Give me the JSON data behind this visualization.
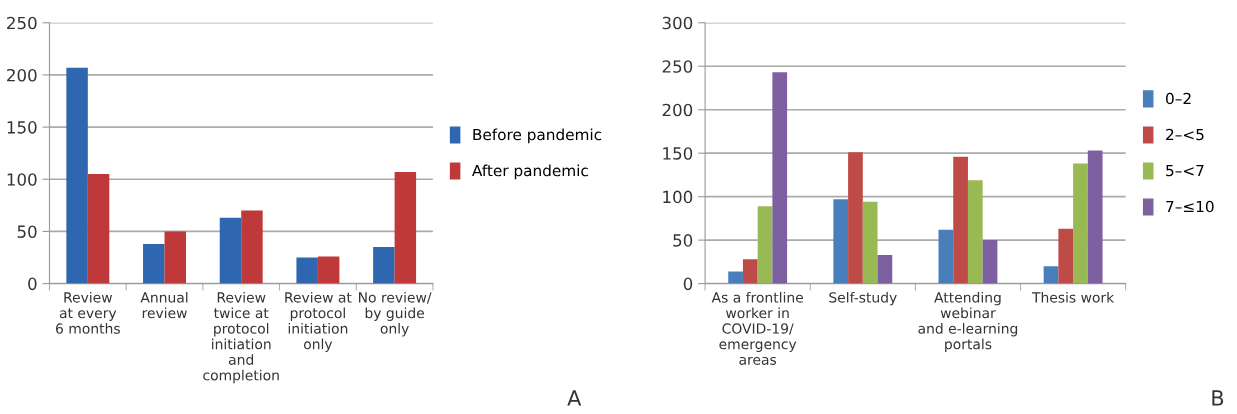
{
  "chart_data": [
    {
      "type": "bar",
      "categories": [
        "Review\nat every\n6 months",
        "Annual\nreview",
        "Review\ntwice at\nprotocol\ninitiation\nand\ncompletion",
        "Review at\nprotocol\ninitiation\nonly",
        "No review/\nby guide\nonly"
      ],
      "series": [
        {
          "name": "Before pandemic",
          "color": "#2e67b0",
          "values": [
            207,
            38,
            63,
            25,
            35
          ]
        },
        {
          "name": "After pandemic",
          "color": "#c0393a",
          "values": [
            105,
            50,
            70,
            26,
            107
          ]
        }
      ],
      "ylim": [
        0,
        250
      ],
      "yticks": [
        0,
        50,
        100,
        150,
        200,
        250
      ],
      "grid": "y",
      "legend": "right",
      "annotations": [
        "A"
      ]
    },
    {
      "type": "bar",
      "categories": [
        "As a frontline\nworker in\nCOVID-19/\nemergency\nareas",
        "Self-study",
        "Attending\nwebinar\nand e-learning\nportals",
        "Thesis work"
      ],
      "series": [
        {
          "name": "0–2",
          "color": "#4a7ebb",
          "values": [
            14,
            97,
            62,
            20
          ]
        },
        {
          "name": "2–<5",
          "color": "#be4b48",
          "values": [
            28,
            151,
            146,
            63
          ]
        },
        {
          "name": "5–<7",
          "color": "#98b954",
          "values": [
            89,
            94,
            119,
            138
          ]
        },
        {
          "name": "7–≤10",
          "color": "#7d60a0",
          "values": [
            243,
            33,
            50,
            153
          ]
        }
      ],
      "ylim": [
        0,
        300
      ],
      "yticks": [
        0,
        50,
        100,
        150,
        200,
        250,
        300
      ],
      "grid": "y",
      "legend": "right",
      "annotations": [
        "B"
      ]
    }
  ]
}
